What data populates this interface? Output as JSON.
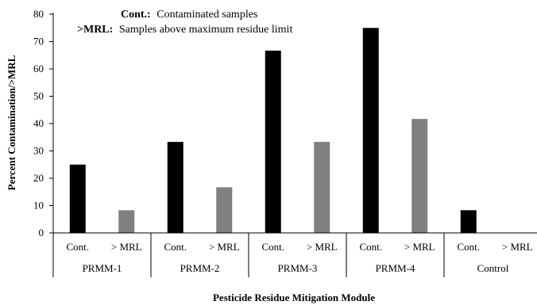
{
  "chart_data": {
    "type": "bar",
    "xlabel": "Pesticide Residue Mitigation Module",
    "ylabel": "Percent Contamination/>MRL",
    "ylim": [
      0,
      80
    ],
    "yticks": [
      0,
      10,
      20,
      30,
      40,
      50,
      60,
      70,
      80
    ],
    "groups": [
      "PRMM-1",
      "PRMM-2",
      "PRMM-3",
      "PRMM-4",
      "Control"
    ],
    "sub_categories": [
      "Cont.",
      "> MRL"
    ],
    "series": [
      {
        "key": "Cont.",
        "color": "#000000",
        "values": [
          25,
          33.3,
          66.7,
          75,
          8.3
        ]
      },
      {
        "key": "> MRL",
        "color": "#808080",
        "values": [
          8.3,
          16.7,
          33.3,
          41.7,
          0
        ]
      }
    ],
    "notes": [
      {
        "key": "Cont.:",
        "text": "Contaminated samples"
      },
      {
        "key": ">MRL:",
        "text": "Samples above maximum residue limit"
      }
    ],
    "grid": false,
    "legend": "none"
  }
}
